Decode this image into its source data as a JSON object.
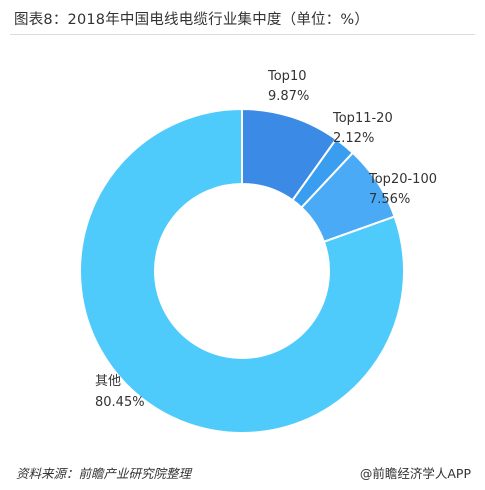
{
  "title": "图表8：2018年中国电线电缆行业集中度（单位：%）",
  "source": "资料来源：前瞻产业研究院整理",
  "brand": "@前瞻经济学人APP",
  "colors": {
    "slices": [
      "#3a8ae6",
      "#3a9ef0",
      "#4aaaf6",
      "#4ecbfb"
    ],
    "divider": "#dcdcdc"
  },
  "chart_data": {
    "type": "pie",
    "variant": "donut",
    "title": "图表8：2018年中国电线电缆行业集中度（单位：%）",
    "unit": "%",
    "categories": [
      "Top10",
      "Top11-20",
      "Top20-100",
      "其他"
    ],
    "values": [
      9.87,
      2.12,
      7.56,
      80.45
    ],
    "value_labels": [
      "9.87%",
      "2.12%",
      "7.56%",
      "80.45%"
    ]
  }
}
